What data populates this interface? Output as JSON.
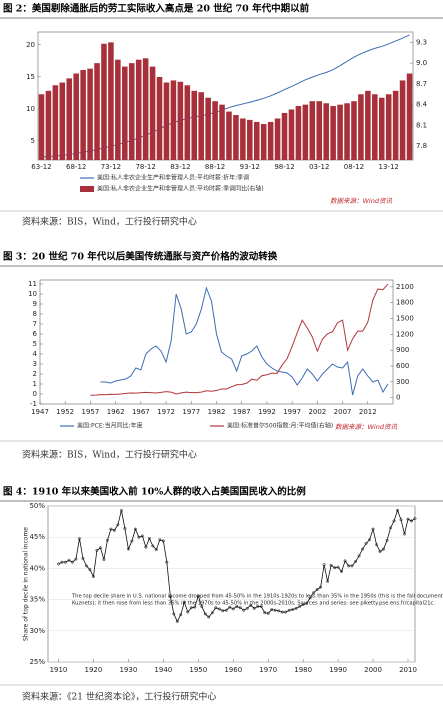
{
  "chart_data": [
    {
      "type": "bar",
      "title": "图 2：美国剔除通胀后的劳工实际收入高点是 20 世纪 70 年代中期以前",
      "source": "资料来源：BIS，Wind，工行投行研究中心",
      "watermark": "数据来源：Wind资讯",
      "categories": [
        "63-12",
        null,
        null,
        null,
        null,
        "68-12",
        null,
        null,
        null,
        null,
        "73-12",
        null,
        null,
        null,
        null,
        "78-12",
        null,
        null,
        null,
        null,
        "83-12",
        null,
        null,
        null,
        null,
        "88-12",
        null,
        null,
        null,
        null,
        "93-12",
        null,
        null,
        null,
        null,
        "98-12",
        null,
        null,
        null,
        null,
        "03-12",
        null,
        null,
        null,
        null,
        "08-12",
        null,
        null,
        null,
        null,
        "13-12",
        null,
        null,
        null
      ],
      "series": [
        {
          "name": "美国:私人非农企业生产和非管理人员:平均时薪:折年:季调",
          "type": "line",
          "color": "#3b6db3",
          "axis": "y",
          "values": [
            2.46,
            2.53,
            2.63,
            2.73,
            2.85,
            3.02,
            3.22,
            3.4,
            3.63,
            3.9,
            4.14,
            4.43,
            4.73,
            5.06,
            5.44,
            5.88,
            6.34,
            6.84,
            7.43,
            7.86,
            8.19,
            8.48,
            8.73,
            8.92,
            9.13,
            9.43,
            9.8,
            10.19,
            10.5,
            10.76,
            11.03,
            11.32,
            11.64,
            12.03,
            12.49,
            13,
            13.47,
            14,
            14.53,
            14.95,
            15.35,
            15.67,
            16.11,
            16.73,
            17.42,
            18.06,
            18.61,
            19.05,
            19.44,
            19.74,
            20.13,
            20.61,
            21.03,
            21.54
          ]
        },
        {
          "name": "美国:私人非农企业生产和非管理人员:平均时薪:季调同比(右轴)",
          "type": "bar",
          "color": "#a8303a",
          "axis": "y2",
          "values": [
            8.55,
            8.6,
            8.68,
            8.72,
            8.78,
            8.85,
            8.9,
            8.92,
            9.0,
            9.28,
            9.3,
            9.05,
            8.95,
            9.0,
            9.05,
            9.07,
            8.95,
            8.8,
            8.72,
            8.75,
            8.73,
            8.68,
            8.6,
            8.58,
            8.5,
            8.45,
            8.4,
            8.3,
            8.25,
            8.2,
            8.18,
            8.15,
            8.12,
            8.15,
            8.2,
            8.28,
            8.33,
            8.38,
            8.4,
            8.45,
            8.45,
            8.42,
            8.38,
            8.4,
            8.42,
            8.45,
            8.55,
            8.6,
            8.55,
            8.5,
            8.55,
            8.6,
            8.75,
            8.85
          ]
        }
      ],
      "ylim": [
        2,
        22
      ],
      "yticks": [
        5,
        10,
        15,
        20
      ],
      "y2lim": [
        7.6,
        9.45
      ],
      "y2ticks": [
        7.8,
        8.1,
        8.4,
        8.7,
        {
          "value": 9,
          "label": "9.0"
        },
        9.3
      ],
      "grid": false
    },
    {
      "type": "line",
      "title": "图 3：20 世纪 70 年代以后美国传统通胀与资产价格的波动转换",
      "source": "资料来源：BIS，Wind，工行投行研究中心",
      "watermark": "数据来源：Wind资讯",
      "x": [
        1957,
        1958,
        1959,
        1960,
        1961,
        1962,
        1963,
        1964,
        1965,
        1966,
        1967,
        1968,
        1969,
        1970,
        1971,
        1972,
        1973,
        1974,
        1975,
        1976,
        1977,
        1978,
        1979,
        1980,
        1981,
        1982,
        1983,
        1984,
        1985,
        1986,
        1987,
        1988,
        1989,
        1990,
        1991,
        1992,
        1993,
        1994,
        1995,
        1996,
        1997,
        1998,
        1999,
        2000,
        2001,
        2002,
        2003,
        2004,
        2005,
        2006,
        2007,
        2008,
        2009,
        2010,
        2011,
        2012,
        2013,
        2014,
        2015,
        2016
      ],
      "series": [
        {
          "name": "美国:PCE:当月同比:年度",
          "color": "#3b6db3",
          "axis": "y",
          "values": [
            null,
            null,
            1.2,
            1.2,
            1.1,
            1.3,
            1.4,
            1.5,
            1.8,
            2.6,
            2.4,
            4.0,
            4.5,
            4.8,
            4.3,
            3.2,
            5.3,
            10.0,
            8.5,
            6.0,
            6.2,
            7.0,
            8.5,
            10.6,
            9.3,
            6.0,
            4.2,
            3.8,
            3.5,
            2.3,
            3.8,
            4.0,
            4.3,
            4.8,
            3.7,
            3.0,
            2.6,
            2.3,
            2.2,
            2.1,
            1.7,
            0.9,
            1.6,
            2.5,
            2.0,
            1.3,
            2.0,
            2.5,
            3.0,
            2.7,
            2.6,
            3.2,
            -0.1,
            1.8,
            2.5,
            1.8,
            1.2,
            1.4,
            0.2,
            1.0
          ]
        },
        {
          "name": "美国:标准普尔500指数:月:平均值(右轴)",
          "color": "#b5343a",
          "axis": "y2",
          "values": [
            45,
            48,
            57,
            56,
            65,
            62,
            70,
            82,
            88,
            85,
            92,
            100,
            95,
            88,
            100,
            115,
            105,
            70,
            90,
            105,
            95,
            96,
            105,
            130,
            122,
            135,
            165,
            165,
            205,
            245,
            250,
            275,
            350,
            330,
            415,
            435,
            465,
            460,
            615,
            740,
            970,
            1230,
            1470,
            1320,
            1150,
            880,
            1110,
            1210,
            1250,
            1420,
            1470,
            900,
            1115,
            1260,
            1260,
            1430,
            1850,
            2060,
            2045,
            2150
          ]
        }
      ],
      "xlim": [
        1947,
        2017
      ],
      "xticks": [
        1947,
        1952,
        1957,
        1962,
        1967,
        1972,
        1977,
        1982,
        1987,
        1992,
        1997,
        2002,
        2007,
        2012
      ],
      "ylim": [
        -1,
        11.4
      ],
      "yticks": [
        -1,
        0,
        1,
        2,
        3,
        4,
        5,
        6,
        7,
        8,
        9,
        10,
        11
      ],
      "y2lim": [
        -120,
        2230
      ],
      "y2ticks": [
        0,
        300,
        600,
        900,
        1200,
        1500,
        1800,
        2100
      ],
      "grid": false
    },
    {
      "type": "line",
      "title": "图 4：1910 年以来美国收入前 10%人群的收入占美国国民收入的比例",
      "source": "资料来源：《21 世纪资本论》，工行投行研究中心",
      "y_label": "Share of top decile in national income",
      "annotation": [
        "The top decile share in U.S. national income dropped from 45-50% in the 1910s-1920s to less than 35% in the 1950s (this is the fall documented by",
        "Kuznets); it then rose from less than 35% in the 1970s to 45-50% in the 2000s-2010s. Sources and series: see piketty.pse.ens.fr/capital21c."
      ],
      "markers": true,
      "x": [
        1910,
        1911,
        1912,
        1913,
        1914,
        1915,
        1916,
        1917,
        1918,
        1919,
        1920,
        1921,
        1922,
        1923,
        1924,
        1925,
        1926,
        1927,
        1928,
        1929,
        1930,
        1931,
        1932,
        1933,
        1934,
        1935,
        1936,
        1937,
        1938,
        1939,
        1940,
        1941,
        1942,
        1943,
        1944,
        1945,
        1946,
        1947,
        1948,
        1949,
        1950,
        1951,
        1952,
        1953,
        1954,
        1955,
        1956,
        1957,
        1958,
        1959,
        1960,
        1961,
        1962,
        1963,
        1964,
        1965,
        1966,
        1967,
        1968,
        1969,
        1970,
        1971,
        1972,
        1973,
        1974,
        1975,
        1976,
        1977,
        1978,
        1979,
        1980,
        1981,
        1982,
        1983,
        1984,
        1985,
        1986,
        1987,
        1988,
        1989,
        1990,
        1991,
        1992,
        1993,
        1994,
        1995,
        1996,
        1997,
        1998,
        1999,
        2000,
        2001,
        2002,
        2003,
        2004,
        2005,
        2006,
        2007,
        2008,
        2009,
        2010,
        2011,
        2012
      ],
      "series": [
        {
          "color": "#111111",
          "axis": "y",
          "values": [
            40.7,
            41.0,
            41.0,
            41.3,
            41.0,
            41.5,
            44.8,
            41.6,
            40.4,
            39.8,
            38.7,
            42.9,
            43.3,
            41.4,
            44.5,
            46.3,
            46.1,
            47.0,
            49.3,
            46.4,
            43.1,
            44.4,
            46.3,
            45.0,
            45.2,
            43.4,
            44.8,
            43.6,
            43.0,
            44.6,
            44.4,
            41.0,
            35.5,
            32.7,
            31.5,
            32.6,
            34.6,
            33.0,
            33.7,
            33.8,
            35.6,
            33.9,
            32.7,
            32.2,
            32.9,
            33.7,
            33.5,
            33.2,
            33.3,
            33.8,
            33.5,
            33.9,
            33.7,
            33.3,
            33.6,
            34.1,
            33.6,
            33.9,
            33.9,
            32.9,
            32.8,
            33.4,
            33.3,
            33.2,
            33.0,
            33.0,
            33.3,
            33.4,
            33.6,
            33.9,
            34.2,
            34.4,
            35.3,
            36.1,
            36.6,
            37.0,
            40.6,
            37.9,
            40.5,
            40.1,
            40.2,
            39.5,
            41.2,
            40.4,
            40.4,
            41.1,
            42.0,
            43.1,
            44.0,
            44.6,
            46.3,
            43.8,
            42.7,
            43.1,
            44.5,
            46.5,
            47.6,
            49.3,
            47.8,
            45.5,
            47.9,
            47.6,
            48.0
          ]
        }
      ],
      "xlim": [
        1907,
        2012
      ],
      "xticks": [
        1910,
        1920,
        1930,
        1940,
        1950,
        1960,
        1970,
        1980,
        1990,
        2000,
        2010
      ],
      "ylim": [
        25,
        50
      ],
      "yticks": [
        {
          "value": 25,
          "label": "25%"
        },
        {
          "value": 30,
          "label": "30%"
        },
        {
          "value": 35,
          "label": "35%"
        },
        {
          "value": 40,
          "label": "40%"
        },
        {
          "value": 45,
          "label": "45%"
        },
        {
          "value": 50,
          "label": "50%"
        }
      ],
      "grid": true
    }
  ]
}
